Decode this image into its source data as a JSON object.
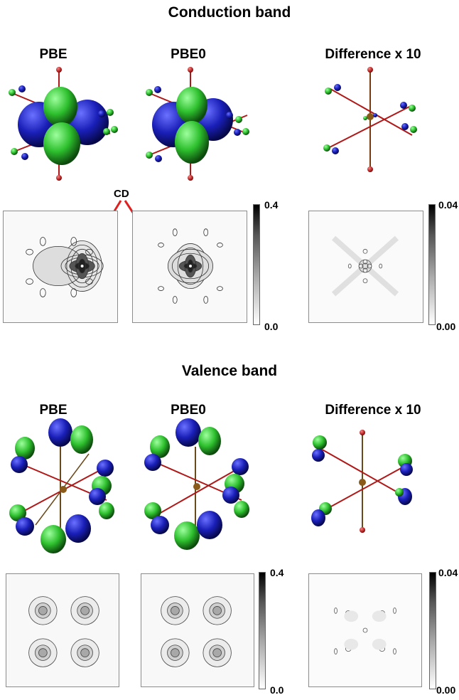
{
  "conduction": {
    "title": "Conduction band",
    "labels": [
      "PBE",
      "PBE0",
      "Difference x 10"
    ],
    "annotation": "CD",
    "colorbar_left": {
      "max": "0.4",
      "min": "0.0"
    },
    "colorbar_right": {
      "max": "0.04",
      "min": "0.00"
    }
  },
  "valence": {
    "title": "Valence band",
    "labels": [
      "PBE",
      "PBE0",
      "Difference x 10"
    ],
    "colorbar_left": {
      "max": "0.4",
      "min": "0.0"
    },
    "colorbar_right": {
      "max": "0.04",
      "min": "0.00"
    }
  },
  "colors": {
    "lobe_blue": "#1a1fb8",
    "lobe_green": "#2ec02e",
    "bond_red": "#b01818",
    "center_brown": "#8a5a1a",
    "arrow_red": "#e02020"
  }
}
